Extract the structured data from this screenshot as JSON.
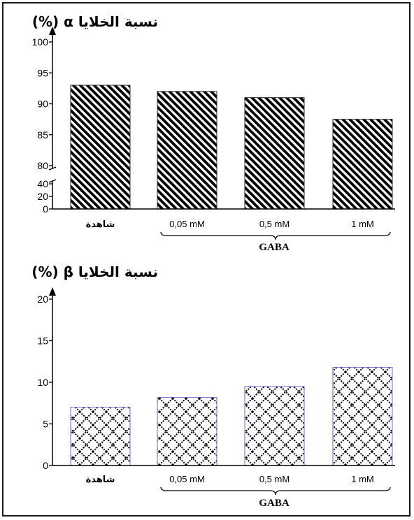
{
  "chart_data": [
    {
      "type": "bar",
      "title": "نسبة الخلايا α (%)",
      "categories": [
        "شاهدة",
        "0,05 mM",
        "0,5 mM",
        "1 mM"
      ],
      "values": [
        93,
        92,
        91,
        87.5
      ],
      "group_label": "GABA",
      "y_ticks_upper": [
        80,
        85,
        90,
        95,
        100
      ],
      "y_ticks_lower": [
        0,
        20,
        40
      ],
      "ylim": [
        0,
        100
      ],
      "axis_break": true,
      "pattern": "diagonal-stripes",
      "grid": false
    },
    {
      "type": "bar",
      "title": "نسبة الخلايا β (%)",
      "categories": [
        "شاهدة",
        "0,05 mM",
        "0,5 mM",
        "1 mM"
      ],
      "values": [
        7,
        8.2,
        9.5,
        11.8
      ],
      "group_label": "GABA",
      "y_ticks": [
        0,
        5,
        10,
        15,
        20
      ],
      "ylim": [
        0,
        20
      ],
      "pattern": "crosshatch-diamond",
      "grid": false
    }
  ]
}
